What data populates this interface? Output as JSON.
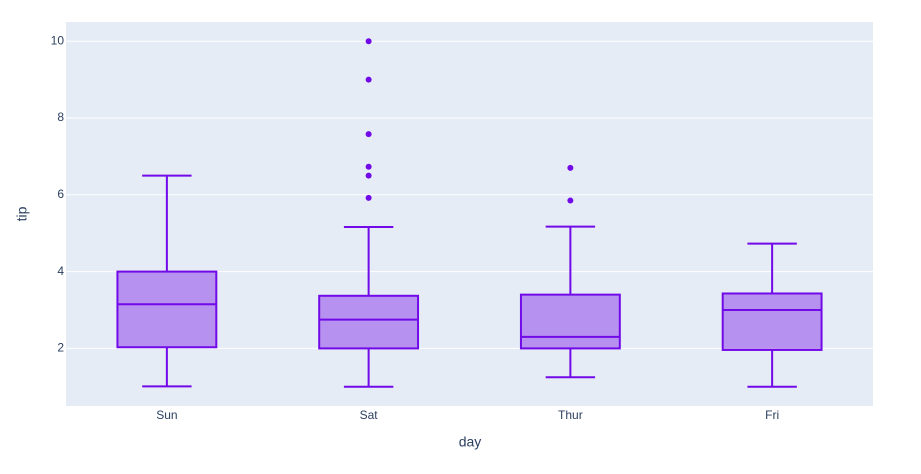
{
  "chart_data": {
    "type": "box",
    "x_label": "day",
    "y_label": "tip",
    "categories": [
      "Sun",
      "Sat",
      "Thur",
      "Fri"
    ],
    "lower": [
      1.01,
      1.0,
      1.25,
      1.0
    ],
    "q1": [
      2.03,
      2.0,
      2.0,
      1.96
    ],
    "median": [
      3.15,
      2.75,
      2.3,
      3.0
    ],
    "q3": [
      4.0,
      3.37,
      3.4,
      3.43
    ],
    "upper": [
      6.5,
      5.16,
      5.17,
      4.73
    ],
    "outliers": [
      [],
      [
        10,
        9,
        7.58,
        6.73,
        6.5,
        5.92
      ],
      [
        6.7,
        5.85
      ],
      []
    ],
    "color": "#7209e8",
    "ylim": [
      0.5,
      10.5
    ],
    "yticks": [
      2,
      4,
      6,
      8,
      10
    ],
    "grid": true
  }
}
